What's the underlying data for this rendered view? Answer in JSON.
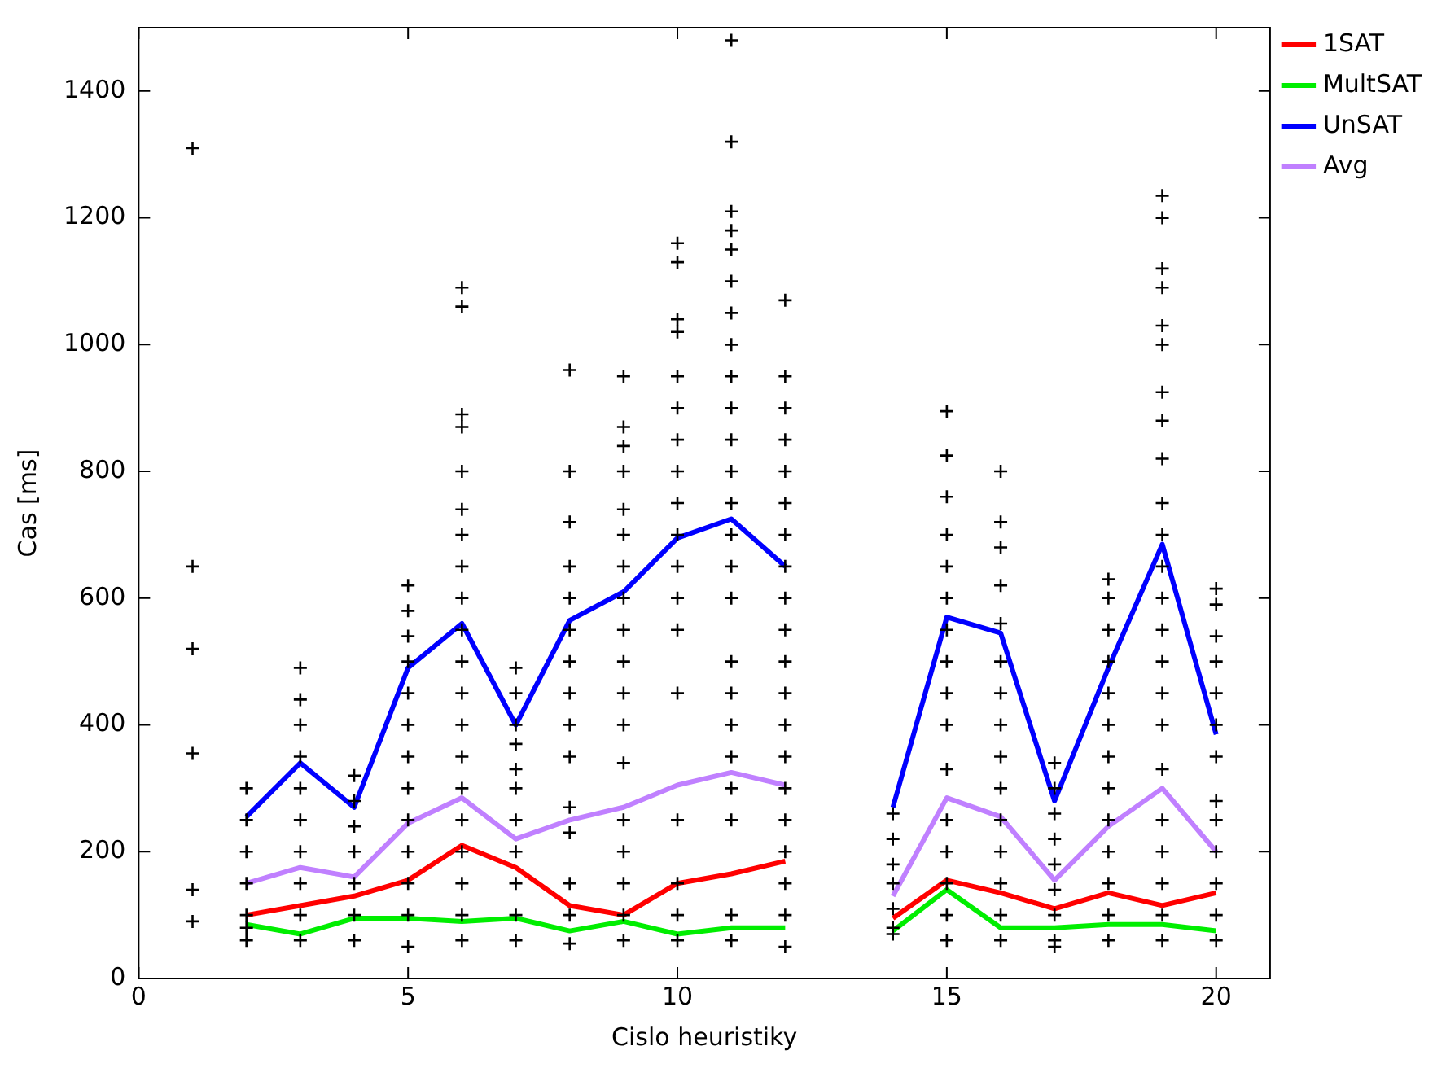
{
  "chart_data": {
    "type": "line",
    "xlabel": "Cislo heuristiky",
    "ylabel": "Cas [ms]",
    "xlim": [
      0,
      21
    ],
    "xticks": [
      0,
      5,
      10,
      15,
      20
    ],
    "ylim": [
      0,
      1500
    ],
    "yticks": [
      0,
      200,
      400,
      600,
      800,
      1000,
      1200,
      1400
    ],
    "grid": false,
    "legend": "top right",
    "series": [
      {
        "type": "scatter",
        "marker": "cross",
        "color": "#000000",
        "x": [
          1,
          1,
          1,
          1,
          1,
          1,
          2,
          2,
          2,
          2,
          2,
          2,
          2,
          3,
          3,
          3,
          3,
          3,
          3,
          3,
          3,
          3,
          3,
          4,
          4,
          4,
          4,
          4,
          4,
          4,
          5,
          5,
          5,
          5,
          5,
          5,
          5,
          5,
          5,
          5,
          5,
          5,
          5,
          6,
          6,
          6,
          6,
          6,
          6,
          6,
          6,
          6,
          6,
          6,
          6,
          6,
          6,
          6,
          6,
          6,
          6,
          6,
          6,
          7,
          7,
          7,
          7,
          7,
          7,
          7,
          7,
          7,
          7,
          7,
          8,
          8,
          8,
          8,
          8,
          8,
          8,
          8,
          8,
          8,
          8,
          8,
          8,
          8,
          8,
          9,
          9,
          9,
          9,
          9,
          9,
          9,
          9,
          9,
          9,
          9,
          9,
          9,
          9,
          9,
          9,
          9,
          9,
          10,
          10,
          10,
          10,
          10,
          10,
          10,
          10,
          10,
          10,
          10,
          10,
          10,
          10,
          10,
          10,
          10,
          10,
          11,
          11,
          11,
          11,
          11,
          11,
          11,
          11,
          11,
          11,
          11,
          11,
          11,
          11,
          11,
          11,
          11,
          11,
          11,
          11,
          11,
          11,
          11,
          11,
          12,
          12,
          12,
          12,
          12,
          12,
          12,
          12,
          12,
          12,
          12,
          12,
          12,
          12,
          12,
          12,
          12,
          12,
          12,
          12,
          14,
          14,
          14,
          14,
          14,
          14,
          14,
          15,
          15,
          15,
          15,
          15,
          15,
          15,
          15,
          15,
          15,
          15,
          15,
          15,
          15,
          15,
          15,
          16,
          16,
          16,
          16,
          16,
          16,
          16,
          16,
          16,
          16,
          16,
          16,
          16,
          16,
          16,
          17,
          17,
          17,
          17,
          17,
          17,
          17,
          17,
          17,
          18,
          18,
          18,
          18,
          18,
          18,
          18,
          18,
          18,
          18,
          18,
          18,
          18,
          19,
          19,
          19,
          19,
          19,
          19,
          19,
          19,
          19,
          19,
          19,
          19,
          19,
          19,
          19,
          19,
          19,
          19,
          19,
          19,
          19,
          19,
          19,
          20,
          20,
          20,
          20,
          20,
          20,
          20,
          20,
          20,
          20,
          20,
          20,
          20
        ],
        "values": [
          1310,
          650,
          520,
          355,
          140,
          90,
          300,
          250,
          200,
          150,
          100,
          80,
          60,
          490,
          440,
          400,
          350,
          300,
          250,
          200,
          150,
          100,
          60,
          320,
          280,
          240,
          200,
          150,
          100,
          60,
          620,
          580,
          540,
          500,
          450,
          400,
          350,
          300,
          250,
          200,
          150,
          100,
          50,
          1090,
          1060,
          890,
          870,
          800,
          740,
          700,
          650,
          600,
          550,
          500,
          450,
          400,
          350,
          300,
          250,
          200,
          150,
          100,
          60,
          490,
          450,
          400,
          370,
          330,
          300,
          250,
          200,
          150,
          100,
          60,
          960,
          800,
          720,
          650,
          600,
          550,
          500,
          450,
          400,
          350,
          270,
          230,
          150,
          100,
          55,
          950,
          870,
          840,
          800,
          740,
          700,
          650,
          600,
          550,
          500,
          450,
          400,
          340,
          250,
          200,
          150,
          100,
          60,
          1160,
          1130,
          1040,
          1020,
          950,
          900,
          850,
          800,
          750,
          700,
          650,
          600,
          550,
          450,
          250,
          150,
          100,
          60,
          1480,
          1320,
          1210,
          1180,
          1150,
          1100,
          1050,
          1000,
          950,
          900,
          850,
          800,
          750,
          700,
          650,
          600,
          500,
          450,
          400,
          350,
          300,
          250,
          100,
          60,
          1070,
          950,
          900,
          850,
          800,
          750,
          700,
          650,
          600,
          550,
          500,
          450,
          400,
          350,
          300,
          250,
          200,
          150,
          100,
          50,
          260,
          220,
          180,
          150,
          110,
          80,
          70,
          895,
          825,
          760,
          700,
          650,
          600,
          550,
          500,
          450,
          400,
          330,
          250,
          200,
          150,
          100,
          60,
          800,
          720,
          680,
          620,
          560,
          500,
          450,
          400,
          350,
          300,
          250,
          200,
          150,
          100,
          60,
          340,
          300,
          260,
          220,
          180,
          140,
          100,
          60,
          50,
          630,
          600,
          550,
          500,
          450,
          400,
          350,
          300,
          250,
          200,
          150,
          100,
          60,
          1235,
          1200,
          1120,
          1090,
          1030,
          1000,
          925,
          880,
          820,
          750,
          700,
          650,
          600,
          550,
          500,
          450,
          400,
          330,
          250,
          200,
          150,
          100,
          60,
          615,
          590,
          540,
          500,
          450,
          400,
          350,
          280,
          250,
          200,
          150,
          100,
          60
        ]
      },
      {
        "name": "1SAT",
        "color": "#ff0000",
        "x": [
          2,
          3,
          4,
          5,
          6,
          7,
          8,
          9,
          10,
          11,
          12,
          13,
          14,
          15,
          16,
          17,
          18,
          19,
          20
        ],
        "values": [
          100,
          115,
          130,
          155,
          210,
          175,
          115,
          100,
          150,
          165,
          185,
          null,
          95,
          155,
          135,
          110,
          135,
          115,
          135
        ]
      },
      {
        "name": "MultSAT",
        "color": "#00ee00",
        "x": [
          2,
          3,
          4,
          5,
          6,
          7,
          8,
          9,
          10,
          11,
          12,
          13,
          14,
          15,
          16,
          17,
          18,
          19,
          20
        ],
        "values": [
          85,
          70,
          95,
          95,
          90,
          95,
          75,
          90,
          70,
          80,
          80,
          null,
          75,
          140,
          80,
          80,
          85,
          85,
          75
        ]
      },
      {
        "name": "UnSAT",
        "color": "#0000ff",
        "x": [
          2,
          3,
          4,
          5,
          6,
          7,
          8,
          9,
          10,
          11,
          12,
          13,
          14,
          15,
          16,
          17,
          18,
          19,
          20
        ],
        "values": [
          255,
          340,
          270,
          490,
          560,
          400,
          565,
          610,
          695,
          725,
          650,
          null,
          270,
          570,
          545,
          280,
          490,
          685,
          385
        ]
      },
      {
        "name": "Avg",
        "color": "#c080ff",
        "x": [
          2,
          3,
          4,
          5,
          6,
          7,
          8,
          9,
          10,
          11,
          12,
          13,
          14,
          15,
          16,
          17,
          18,
          19,
          20
        ],
        "values": [
          150,
          175,
          160,
          245,
          285,
          220,
          250,
          270,
          305,
          325,
          305,
          null,
          130,
          285,
          255,
          155,
          240,
          300,
          200
        ]
      }
    ]
  }
}
